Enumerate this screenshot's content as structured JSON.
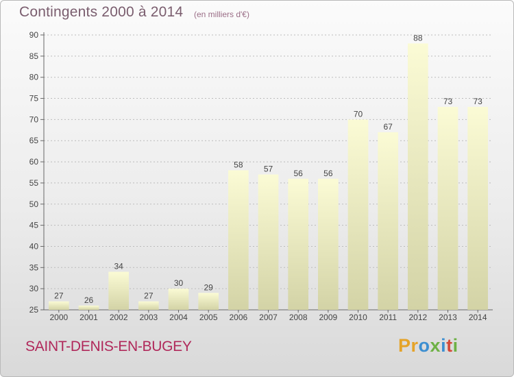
{
  "header": {
    "title": "Contingents 2000 à 2014",
    "subtitle": "(en milliers d'€)"
  },
  "footer": {
    "place_name": "SAINT-DENIS-EN-BUGEY",
    "logo_letters": [
      "P",
      "r",
      "o",
      "x",
      "i",
      "t",
      "i"
    ]
  },
  "colors": {
    "bar_light": "#fbfbd5",
    "bar_dark": "#d3d3a6",
    "axis": "#666666",
    "grid": "#bbbbbb",
    "title": "#7a5d6e",
    "place": "#b0285a"
  },
  "chart_data": {
    "type": "bar",
    "title": "Contingents 2000 à 2014",
    "subtitle": "(en milliers d'€)",
    "categories": [
      "2000",
      "2001",
      "2002",
      "2003",
      "2004",
      "2005",
      "2006",
      "2007",
      "2008",
      "2009",
      "2010",
      "2011",
      "2012",
      "2013",
      "2014"
    ],
    "values": [
      27,
      26,
      34,
      27,
      30,
      29,
      58,
      57,
      56,
      56,
      70,
      67,
      88,
      73,
      73
    ],
    "ylim": [
      25,
      90
    ],
    "yticks": [
      25,
      30,
      35,
      40,
      45,
      50,
      55,
      60,
      65,
      70,
      75,
      80,
      85,
      90
    ],
    "grid": true,
    "data_labels": true,
    "legend": "none"
  }
}
